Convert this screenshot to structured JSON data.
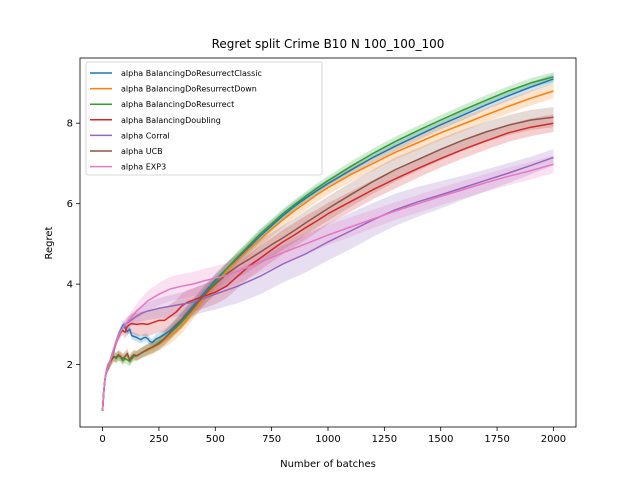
{
  "chart_data": {
    "type": "line",
    "title": "Regret split Crime B10 N 100_100_100",
    "xlabel": "Number of batches",
    "ylabel": "Regret",
    "xlim": [
      -100,
      2100
    ],
    "ylim": [
      0.45,
      9.62
    ],
    "xticks": [
      0,
      250,
      500,
      750,
      1000,
      1250,
      1500,
      1750,
      2000
    ],
    "xtick_labels": [
      "0",
      "250",
      "500",
      "750",
      "1000",
      "1250",
      "1500",
      "1750",
      "2000"
    ],
    "yticks": [
      2,
      4,
      6,
      8
    ],
    "ytick_labels": [
      "2",
      "4",
      "6",
      "8"
    ],
    "grid": false,
    "legend_position": "upper left",
    "series": [
      {
        "name": "alpha BalancingDoResurrectClassic",
        "color": "#1f77b4",
        "x": [
          0,
          5,
          10,
          15,
          20,
          30,
          40,
          50,
          60,
          70,
          80,
          90,
          95,
          100,
          110,
          120,
          130,
          140,
          150,
          160,
          170,
          180,
          190,
          200,
          210,
          220,
          230,
          240,
          250,
          275,
          300,
          350,
          400,
          450,
          500,
          550,
          600,
          650,
          700,
          750,
          800,
          850,
          900,
          950,
          1000,
          1100,
          1200,
          1300,
          1400,
          1500,
          1600,
          1700,
          1800,
          1900,
          2000
        ],
        "y": [
          0.85,
          1.3,
          1.6,
          1.78,
          1.9,
          2.0,
          2.2,
          2.35,
          2.55,
          2.72,
          2.85,
          2.97,
          3.0,
          2.92,
          2.82,
          2.88,
          2.72,
          2.7,
          2.68,
          2.65,
          2.62,
          2.66,
          2.68,
          2.65,
          2.58,
          2.55,
          2.6,
          2.65,
          2.67,
          2.75,
          2.85,
          3.12,
          3.45,
          3.78,
          4.1,
          4.38,
          4.65,
          4.92,
          5.2,
          5.45,
          5.7,
          5.93,
          6.13,
          6.32,
          6.5,
          6.83,
          7.15,
          7.43,
          7.7,
          7.96,
          8.2,
          8.45,
          8.68,
          8.9,
          9.1
        ],
        "band": [
          0.04,
          0.06,
          0.08,
          0.1,
          0.1,
          0.1,
          0.1,
          0.1,
          0.1,
          0.1,
          0.1,
          0.1,
          0.1,
          0.1,
          0.1,
          0.1,
          0.1,
          0.1,
          0.1,
          0.1,
          0.1,
          0.1,
          0.1,
          0.1,
          0.1,
          0.1,
          0.12,
          0.12,
          0.12,
          0.13,
          0.14,
          0.15,
          0.15,
          0.15,
          0.15,
          0.15,
          0.15,
          0.15,
          0.15,
          0.14,
          0.13,
          0.13,
          0.12,
          0.12,
          0.12,
          0.12,
          0.12,
          0.12,
          0.12,
          0.12,
          0.12,
          0.12,
          0.12,
          0.12,
          0.12
        ]
      },
      {
        "name": "alpha BalancingDoResurrectDown",
        "color": "#ff7f0e",
        "x": [
          0,
          5,
          10,
          15,
          20,
          30,
          40,
          50,
          60,
          70,
          80,
          90,
          100,
          110,
          120,
          130,
          140,
          150,
          175,
          200,
          225,
          250,
          275,
          300,
          350,
          400,
          450,
          500,
          550,
          600,
          650,
          700,
          750,
          800,
          850,
          900,
          950,
          1000,
          1100,
          1200,
          1300,
          1400,
          1500,
          1600,
          1700,
          1800,
          1900,
          2000
        ],
        "y": [
          0.85,
          1.3,
          1.6,
          1.78,
          1.9,
          2.0,
          2.1,
          2.2,
          2.18,
          2.2,
          2.22,
          2.15,
          2.2,
          2.25,
          2.1,
          2.2,
          2.25,
          2.2,
          2.3,
          2.35,
          2.42,
          2.5,
          2.6,
          2.7,
          2.95,
          3.3,
          3.65,
          3.98,
          4.3,
          4.6,
          4.87,
          5.12,
          5.37,
          5.6,
          5.82,
          6.02,
          6.22,
          6.4,
          6.72,
          7.0,
          7.28,
          7.52,
          7.76,
          7.98,
          8.2,
          8.42,
          8.62,
          8.8
        ],
        "band": [
          0.04,
          0.06,
          0.08,
          0.1,
          0.1,
          0.1,
          0.12,
          0.12,
          0.12,
          0.12,
          0.12,
          0.12,
          0.12,
          0.12,
          0.12,
          0.12,
          0.12,
          0.12,
          0.13,
          0.14,
          0.15,
          0.16,
          0.17,
          0.18,
          0.18,
          0.18,
          0.18,
          0.18,
          0.18,
          0.18,
          0.18,
          0.18,
          0.18,
          0.18,
          0.18,
          0.18,
          0.18,
          0.18,
          0.18,
          0.18,
          0.18,
          0.18,
          0.18,
          0.18,
          0.18,
          0.18,
          0.18,
          0.18
        ]
      },
      {
        "name": "alpha BalancingDoResurrect",
        "color": "#2ca02c",
        "x": [
          0,
          5,
          10,
          15,
          20,
          30,
          40,
          50,
          60,
          70,
          80,
          90,
          100,
          110,
          120,
          130,
          140,
          150,
          175,
          200,
          225,
          250,
          275,
          300,
          350,
          400,
          450,
          500,
          550,
          600,
          650,
          700,
          750,
          800,
          850,
          900,
          950,
          1000,
          1100,
          1200,
          1300,
          1400,
          1500,
          1600,
          1700,
          1800,
          1900,
          2000
        ],
        "y": [
          0.85,
          1.3,
          1.6,
          1.78,
          1.9,
          2.0,
          2.12,
          2.2,
          2.15,
          2.22,
          2.18,
          2.1,
          2.15,
          2.12,
          2.08,
          2.15,
          2.2,
          2.22,
          2.3,
          2.38,
          2.45,
          2.55,
          2.65,
          2.78,
          3.05,
          3.38,
          3.72,
          4.05,
          4.38,
          4.68,
          4.97,
          5.25,
          5.5,
          5.75,
          5.97,
          6.18,
          6.38,
          6.57,
          6.92,
          7.25,
          7.55,
          7.82,
          8.08,
          8.33,
          8.57,
          8.8,
          9.0,
          9.15
        ],
        "band": [
          0.04,
          0.06,
          0.08,
          0.1,
          0.1,
          0.1,
          0.12,
          0.12,
          0.12,
          0.12,
          0.12,
          0.12,
          0.12,
          0.12,
          0.12,
          0.12,
          0.12,
          0.12,
          0.13,
          0.14,
          0.15,
          0.15,
          0.15,
          0.15,
          0.15,
          0.15,
          0.15,
          0.15,
          0.14,
          0.14,
          0.13,
          0.13,
          0.12,
          0.12,
          0.12,
          0.12,
          0.12,
          0.12,
          0.12,
          0.12,
          0.12,
          0.12,
          0.12,
          0.12,
          0.12,
          0.12,
          0.12,
          0.12
        ]
      },
      {
        "name": "alpha BalancingDoubling",
        "color": "#d62728",
        "x": [
          0,
          5,
          10,
          15,
          20,
          30,
          40,
          50,
          60,
          70,
          80,
          90,
          100,
          110,
          120,
          130,
          150,
          175,
          200,
          225,
          250,
          275,
          300,
          325,
          350,
          375,
          400,
          450,
          500,
          550,
          600,
          650,
          700,
          750,
          800,
          850,
          900,
          950,
          1000,
          1100,
          1200,
          1300,
          1400,
          1500,
          1600,
          1700,
          1800,
          1900,
          2000
        ],
        "y": [
          0.85,
          1.3,
          1.6,
          1.78,
          1.9,
          2.0,
          2.2,
          2.35,
          2.55,
          2.68,
          2.8,
          2.85,
          2.8,
          2.95,
          3.0,
          3.02,
          3.0,
          3.02,
          3.0,
          3.05,
          3.1,
          3.1,
          3.2,
          3.3,
          3.45,
          3.55,
          3.6,
          3.7,
          3.8,
          3.95,
          4.2,
          4.45,
          4.65,
          4.85,
          5.05,
          5.22,
          5.4,
          5.57,
          5.75,
          6.05,
          6.35,
          6.62,
          6.88,
          7.12,
          7.35,
          7.56,
          7.76,
          7.9,
          8.0
        ],
        "band": [
          0.04,
          0.06,
          0.08,
          0.1,
          0.1,
          0.1,
          0.1,
          0.1,
          0.1,
          0.1,
          0.12,
          0.12,
          0.15,
          0.2,
          0.22,
          0.25,
          0.28,
          0.3,
          0.3,
          0.3,
          0.3,
          0.3,
          0.3,
          0.3,
          0.3,
          0.3,
          0.3,
          0.3,
          0.3,
          0.3,
          0.3,
          0.3,
          0.3,
          0.3,
          0.3,
          0.3,
          0.3,
          0.28,
          0.27,
          0.25,
          0.24,
          0.24,
          0.23,
          0.22,
          0.22,
          0.22,
          0.22,
          0.22,
          0.22
        ]
      },
      {
        "name": "alpha Corral",
        "color": "#9467bd",
        "x": [
          0,
          5,
          10,
          15,
          20,
          30,
          40,
          50,
          60,
          70,
          80,
          90,
          100,
          125,
          150,
          175,
          200,
          250,
          300,
          350,
          400,
          450,
          500,
          600,
          700,
          800,
          900,
          1000,
          1100,
          1200,
          1300,
          1400,
          1500,
          1600,
          1700,
          1800,
          1900,
          2000
        ],
        "y": [
          0.85,
          1.3,
          1.6,
          1.78,
          1.9,
          2.0,
          2.2,
          2.38,
          2.55,
          2.7,
          2.82,
          2.92,
          3.0,
          3.1,
          3.2,
          3.28,
          3.33,
          3.4,
          3.45,
          3.5,
          3.55,
          3.65,
          3.75,
          3.95,
          4.2,
          4.5,
          4.75,
          5.05,
          5.32,
          5.6,
          5.85,
          6.05,
          6.22,
          6.4,
          6.58,
          6.76,
          6.95,
          7.15
        ],
        "band": [
          0.04,
          0.06,
          0.08,
          0.1,
          0.1,
          0.1,
          0.1,
          0.1,
          0.1,
          0.1,
          0.1,
          0.1,
          0.12,
          0.15,
          0.18,
          0.2,
          0.22,
          0.25,
          0.28,
          0.3,
          0.33,
          0.35,
          0.38,
          0.42,
          0.45,
          0.46,
          0.46,
          0.46,
          0.45,
          0.42,
          0.4,
          0.37,
          0.34,
          0.3,
          0.27,
          0.25,
          0.22,
          0.2
        ]
      },
      {
        "name": "alpha UCB",
        "color": "#8c564b",
        "x": [
          0,
          5,
          10,
          15,
          20,
          30,
          40,
          50,
          60,
          70,
          80,
          90,
          100,
          110,
          120,
          130,
          140,
          150,
          175,
          200,
          225,
          250,
          275,
          300,
          350,
          400,
          450,
          500,
          550,
          600,
          650,
          700,
          750,
          800,
          850,
          900,
          950,
          1000,
          1100,
          1200,
          1300,
          1400,
          1500,
          1600,
          1700,
          1800,
          1900,
          2000
        ],
        "y": [
          0.85,
          1.3,
          1.6,
          1.78,
          1.9,
          2.0,
          2.12,
          2.2,
          2.18,
          2.25,
          2.2,
          2.15,
          2.2,
          2.28,
          2.12,
          2.2,
          2.25,
          2.22,
          2.3,
          2.38,
          2.45,
          2.52,
          2.65,
          2.8,
          3.1,
          3.4,
          3.72,
          4.0,
          4.25,
          4.45,
          4.62,
          4.8,
          4.98,
          5.15,
          5.33,
          5.52,
          5.7,
          5.88,
          6.22,
          6.55,
          6.85,
          7.1,
          7.35,
          7.58,
          7.78,
          7.95,
          8.08,
          8.15
        ],
        "band": [
          0.04,
          0.06,
          0.08,
          0.1,
          0.1,
          0.1,
          0.12,
          0.12,
          0.12,
          0.12,
          0.12,
          0.12,
          0.12,
          0.12,
          0.12,
          0.12,
          0.12,
          0.12,
          0.13,
          0.14,
          0.15,
          0.16,
          0.17,
          0.18,
          0.2,
          0.22,
          0.24,
          0.26,
          0.28,
          0.3,
          0.3,
          0.3,
          0.3,
          0.3,
          0.3,
          0.3,
          0.3,
          0.3,
          0.3,
          0.3,
          0.3,
          0.28,
          0.27,
          0.26,
          0.25,
          0.25,
          0.25,
          0.25
        ]
      },
      {
        "name": "alpha EXP3",
        "color": "#e377c2",
        "x": [
          0,
          5,
          10,
          15,
          20,
          30,
          40,
          50,
          60,
          70,
          80,
          90,
          100,
          125,
          150,
          175,
          200,
          250,
          300,
          350,
          400,
          450,
          500,
          550,
          600,
          700,
          800,
          900,
          1000,
          1100,
          1200,
          1300,
          1400,
          1500,
          1600,
          1700,
          1800,
          1900,
          2000
        ],
        "y": [
          0.85,
          1.3,
          1.6,
          1.78,
          1.9,
          2.0,
          2.2,
          2.38,
          2.55,
          2.7,
          2.82,
          2.92,
          3.0,
          3.15,
          3.32,
          3.45,
          3.58,
          3.75,
          3.88,
          3.95,
          4.0,
          4.08,
          4.15,
          4.22,
          4.32,
          4.55,
          4.78,
          5.0,
          5.22,
          5.42,
          5.62,
          5.82,
          6.0,
          6.18,
          6.35,
          6.52,
          6.68,
          6.82,
          6.98
        ],
        "band": [
          0.04,
          0.06,
          0.08,
          0.1,
          0.1,
          0.1,
          0.1,
          0.1,
          0.1,
          0.1,
          0.1,
          0.1,
          0.12,
          0.15,
          0.18,
          0.22,
          0.25,
          0.28,
          0.3,
          0.3,
          0.3,
          0.3,
          0.3,
          0.3,
          0.3,
          0.28,
          0.27,
          0.26,
          0.25,
          0.24,
          0.23,
          0.22,
          0.22,
          0.22,
          0.22,
          0.22,
          0.22,
          0.22,
          0.22
        ]
      }
    ]
  }
}
